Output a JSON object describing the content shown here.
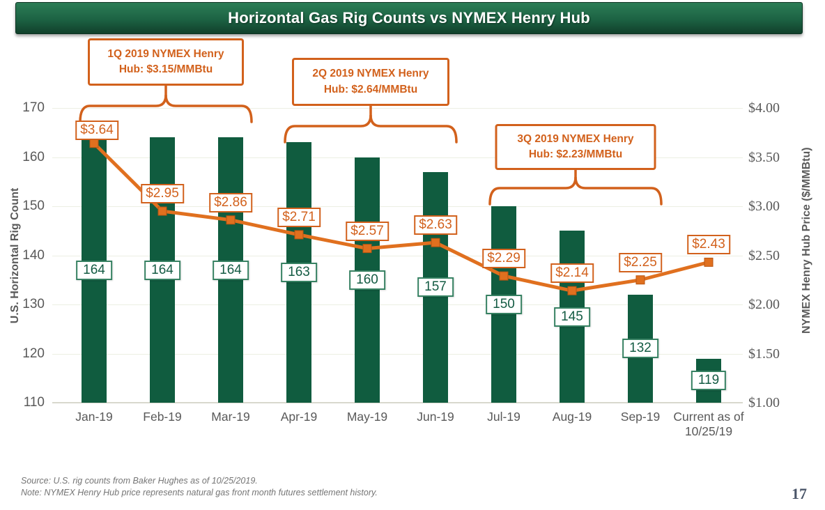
{
  "header": {
    "title": "Horizontal Gas Rig Counts vs NYMEX Henry Hub"
  },
  "chart_data": {
    "type": "combo",
    "categories": [
      "Jan-19",
      "Feb-19",
      "Mar-19",
      "Apr-19",
      "May-19",
      "Jun-19",
      "Jul-19",
      "Aug-19",
      "Sep-19",
      "Current as of 10/25/19"
    ],
    "series": [
      {
        "name": "U.S. Horizontal Rig Count",
        "type": "bar",
        "axis": "left",
        "values": [
          164,
          164,
          164,
          163,
          160,
          157,
          150,
          145,
          132,
          119
        ],
        "labels": [
          "164",
          "164",
          "164",
          "163",
          "160",
          "157",
          "150",
          "145",
          "132",
          "119"
        ]
      },
      {
        "name": "NYMEX Henry Hub Price",
        "type": "line",
        "axis": "right",
        "values": [
          3.64,
          2.95,
          2.86,
          2.71,
          2.57,
          2.63,
          2.29,
          2.14,
          2.25,
          2.43
        ],
        "labels": [
          "$3.64",
          "$2.95",
          "$2.86",
          "$2.71",
          "$2.57",
          "$2.63",
          "$2.29",
          "$2.14",
          "$2.25",
          "$2.43"
        ]
      }
    ],
    "left_axis": {
      "title": "U.S. Horizontal Rig Count",
      "min": 110,
      "max": 170,
      "step": 10,
      "ticks": [
        "170",
        "160",
        "150",
        "140",
        "130",
        "120",
        "110"
      ]
    },
    "right_axis": {
      "title": "NYMEX Henry Hub Price ($/MMBtu)",
      "min": 1.0,
      "max": 4.0,
      "step": 0.5,
      "ticks": [
        "$4.00",
        "$3.50",
        "$3.00",
        "$2.50",
        "$2.00",
        "$1.50",
        "$1.00"
      ]
    },
    "annotations": [
      {
        "line1": "1Q 2019 NYMEX Henry",
        "line2": "Hub: $3.15/MMBtu",
        "from": 0,
        "to": 2
      },
      {
        "line1": "2Q 2019 NYMEX Henry",
        "line2": "Hub: $2.64/MMBtu",
        "from": 3,
        "to": 5
      },
      {
        "line1": "3Q 2019 NYMEX Henry",
        "line2": "Hub: $2.23/MMBtu",
        "from": 6,
        "to": 8
      }
    ],
    "grid": "horizontal",
    "legend": "none"
  },
  "colors": {
    "bar": "#105c3f",
    "line": "#e0701f",
    "marker_border": "#b95410",
    "orange": "#d2611c",
    "count_text": "#135b43",
    "count_border": "#368162",
    "axis_text": "#595959",
    "grid": "#ecefe3"
  },
  "footer": {
    "source": "Source: U.S. rig counts from Baker Hughes as of 10/25/2019.",
    "note": "Note:  NYMEX Henry Hub price represents natural gas front month futures settlement history.",
    "page_number": "17"
  }
}
